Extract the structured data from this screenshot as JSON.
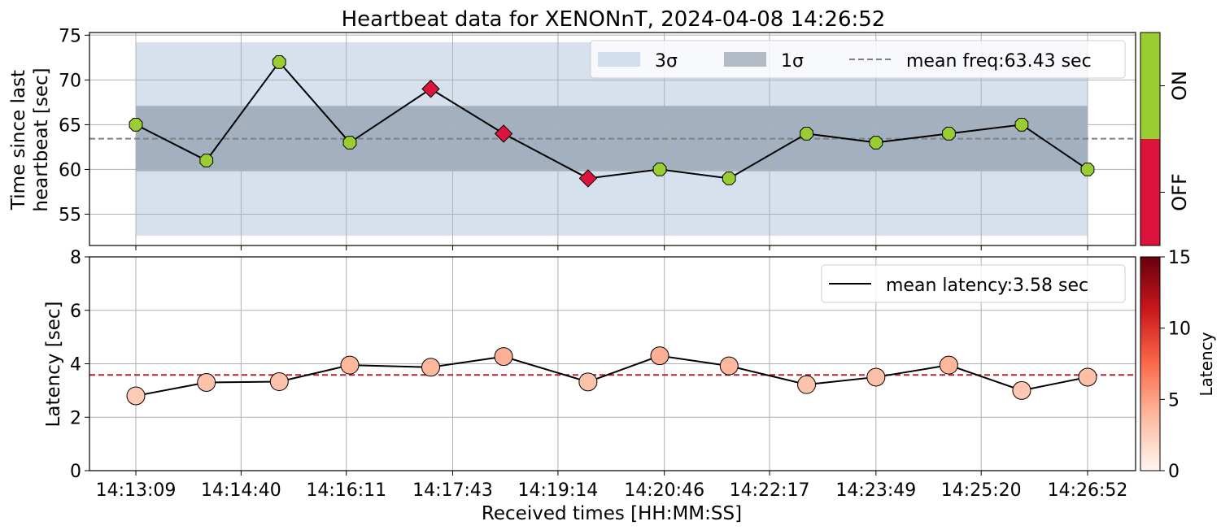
{
  "title": "Heartbeat data for XENONnT, 2024-04-08 14:26:52",
  "colors": {
    "on": "#9acd32",
    "off": "#dc143c",
    "band3": "#b0c4de",
    "band1": "#708090",
    "mean_line": "#808080",
    "latency_mean_line": "#b22234",
    "grid": "#b0b0b0"
  },
  "chart_data": [
    {
      "type": "line",
      "name": "heartbeat",
      "ylabel": [
        "Time since last",
        "heartbeat [sec]"
      ],
      "xlabel": "",
      "x": [
        "14:13:09",
        "14:14:10",
        "14:15:13",
        "14:16:14",
        "14:17:24",
        "14:18:27",
        "14:19:40",
        "14:20:42",
        "14:21:42",
        "14:22:49",
        "14:23:49",
        "14:24:52",
        "14:25:55",
        "14:26:52"
      ],
      "values": [
        65,
        61,
        72,
        63,
        69,
        64,
        59,
        60,
        59,
        64,
        63,
        64,
        65,
        60
      ],
      "status": [
        "ON",
        "ON",
        "ON",
        "ON",
        "OFF",
        "OFF",
        "OFF",
        "ON",
        "ON",
        "ON",
        "ON",
        "ON",
        "ON",
        "ON"
      ],
      "mean": 63.43,
      "band_1sigma": [
        59.8,
        67.1
      ],
      "band_3sigma": [
        52.6,
        74.2
      ],
      "ylim": [
        51.5,
        75.3
      ],
      "yticks": [
        55,
        60,
        65,
        70,
        75
      ],
      "legend": {
        "placement": "top-right",
        "entries": [
          "3σ",
          "1σ",
          "mean freq:63.43 sec"
        ]
      },
      "status_bar": {
        "labels": [
          "ON",
          "OFF"
        ]
      },
      "grid": true
    },
    {
      "type": "scatter",
      "name": "latency",
      "ylabel": "Latency [sec]",
      "xlabel": "Received times [HH:MM:SS]",
      "x": [
        "14:13:09",
        "14:14:10",
        "14:15:13",
        "14:16:14",
        "14:17:24",
        "14:18:27",
        "14:19:40",
        "14:20:42",
        "14:21:42",
        "14:22:49",
        "14:23:49",
        "14:24:52",
        "14:25:55",
        "14:26:52"
      ],
      "values": [
        2.8,
        3.3,
        3.33,
        3.95,
        3.87,
        4.27,
        3.32,
        4.3,
        3.92,
        3.22,
        3.5,
        3.95,
        3.0,
        3.5
      ],
      "mean": 3.58,
      "ylim": [
        0,
        8
      ],
      "yticks": [
        0,
        2,
        4,
        6,
        8
      ],
      "legend": {
        "placement": "top-right",
        "entries": [
          "mean latency:3.58 sec"
        ]
      },
      "colorbar": {
        "label": "Latency",
        "range": [
          0,
          15
        ],
        "ticks": [
          0,
          5,
          10,
          15
        ]
      },
      "grid": true
    }
  ],
  "x_ticks": [
    "14:13:09",
    "14:14:40",
    "14:16:11",
    "14:17:43",
    "14:19:14",
    "14:20:46",
    "14:22:17",
    "14:23:49",
    "14:25:20",
    "14:26:52"
  ]
}
